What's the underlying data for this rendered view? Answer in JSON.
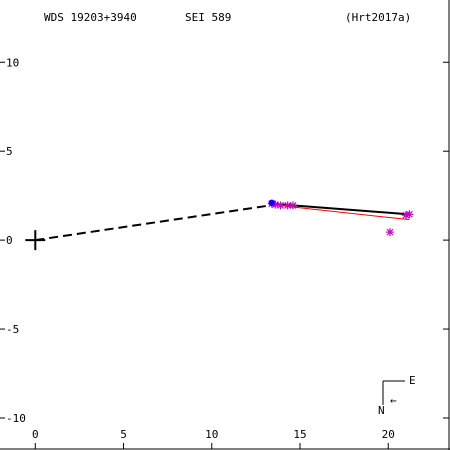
{
  "header": {
    "wds_id": "WDS 19203+3940",
    "discoverer": "SEI 589",
    "reference": "(Hrt2017a)"
  },
  "compass": {
    "north_label": "N",
    "east_label": "E",
    "arrow_glyph": "←"
  },
  "colors": {
    "axes": "#000000",
    "orbit_line": "#000000",
    "fit_line": "#ff0000",
    "observation_marker": "#cc00cc",
    "highlight_marker": "#0000ff"
  },
  "chart_data": {
    "type": "scatter",
    "title": "",
    "xlabel": "",
    "ylabel": "",
    "xlim": [
      -2,
      23.5
    ],
    "ylim": [
      -11.8,
      13.5
    ],
    "x_ticks": [
      0,
      5,
      10,
      15,
      20
    ],
    "y_ticks": [
      10,
      5,
      0,
      -5,
      -10
    ],
    "x_tick_labels": [
      "0",
      "5",
      "10",
      "15",
      "20"
    ],
    "y_tick_labels": [
      "10",
      "5",
      "0",
      "-5",
      "-10"
    ],
    "primary_star": {
      "x": 0,
      "y": 0
    },
    "dashed_line": [
      [
        0,
        0
      ],
      [
        13.3,
        1.95
      ]
    ],
    "orbit_solid_line": [
      [
        13.3,
        2.05
      ],
      [
        21.2,
        1.45
      ]
    ],
    "residual_fit_line": [
      [
        13.3,
        2.0
      ],
      [
        21.2,
        1.15
      ]
    ],
    "observations": [
      {
        "x": 13.4,
        "y": 2.05
      },
      {
        "x": 13.6,
        "y": 2.0
      },
      {
        "x": 13.9,
        "y": 1.95
      },
      {
        "x": 14.3,
        "y": 1.95
      },
      {
        "x": 14.6,
        "y": 1.95
      },
      {
        "x": 20.1,
        "y": 0.45
      },
      {
        "x": 21.0,
        "y": 1.4
      },
      {
        "x": 21.2,
        "y": 1.45
      }
    ],
    "highlighted_observation": {
      "x": 13.4,
      "y": 2.1
    }
  }
}
